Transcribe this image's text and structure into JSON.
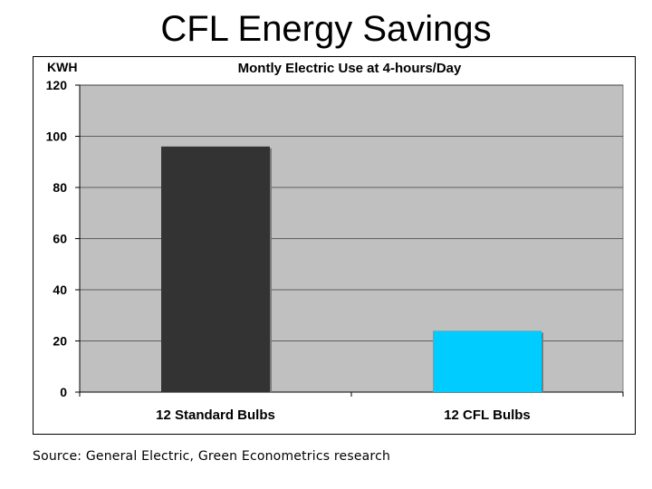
{
  "page": {
    "title": "CFL Energy Savings",
    "source": "Source: General Electric, Green Econometrics research"
  },
  "chart_data": {
    "type": "bar",
    "title": "Montly Electric Use at 4-hours/Day",
    "ylabel": "KWH",
    "xlabel": "",
    "ylim": [
      0,
      120
    ],
    "yticks": [
      0,
      20,
      40,
      60,
      80,
      100,
      120
    ],
    "categories": [
      "12 Standard Bulbs",
      "12 CFL Bulbs"
    ],
    "values": [
      96,
      24
    ],
    "bar_colors": [
      "#333333",
      "#00ccff"
    ],
    "plot_background": "#c0c0c0",
    "grid": true,
    "legend": "none"
  }
}
